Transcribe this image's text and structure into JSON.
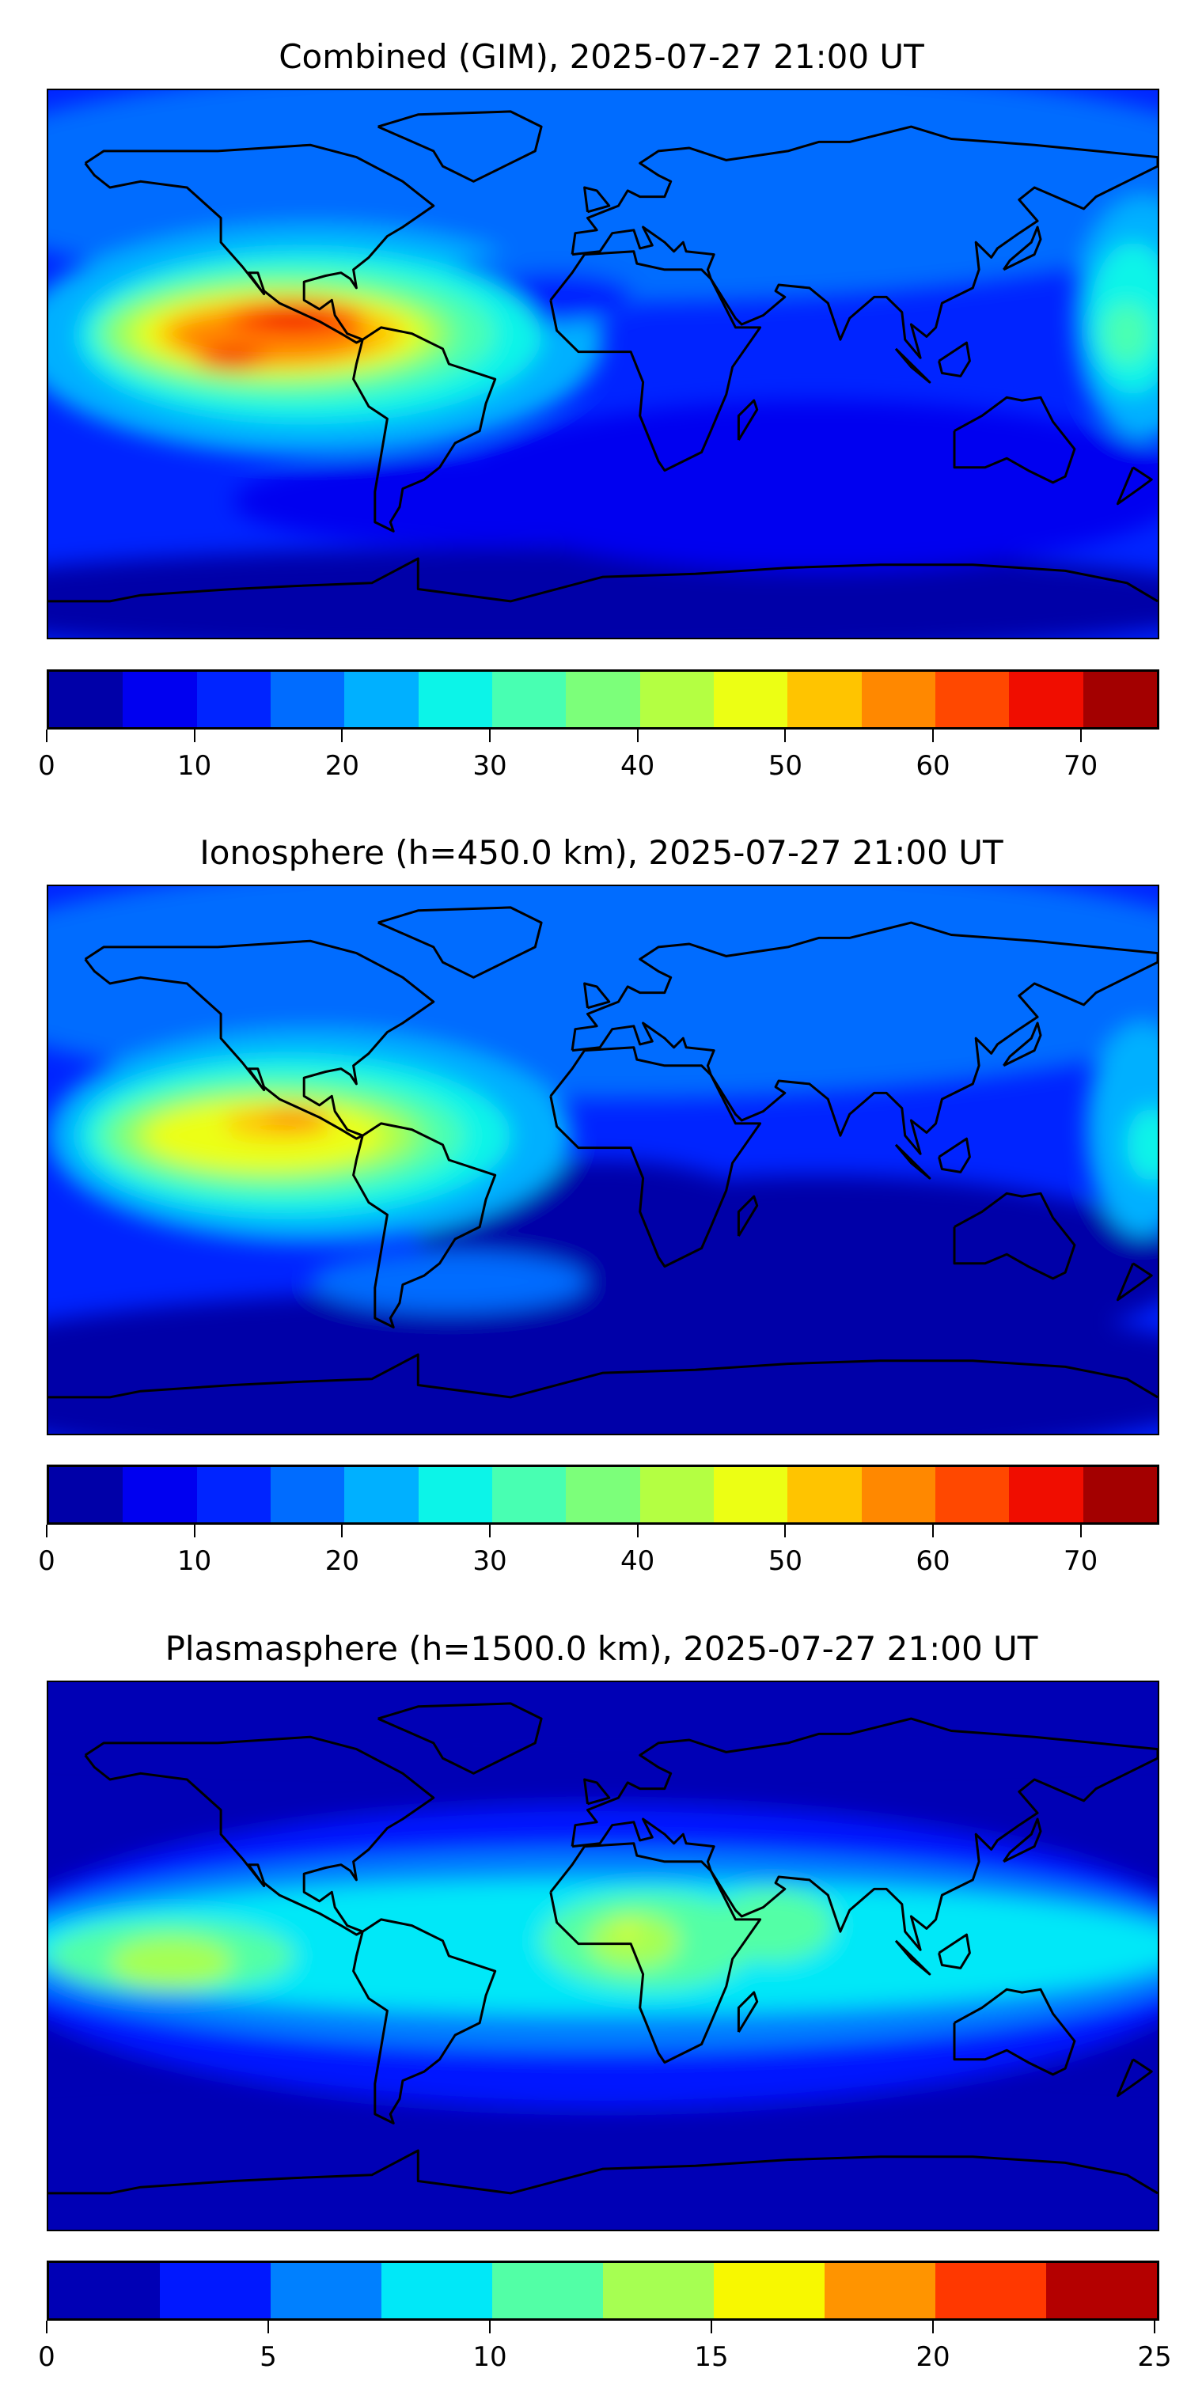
{
  "chart_data": [
    {
      "type": "heatmap",
      "title": "Combined (GIM), 2025-07-27 21:00 UT",
      "xlabel": "",
      "ylabel": "",
      "xlim": [
        -180,
        180
      ],
      "ylim": [
        -90,
        90
      ],
      "colorbar": {
        "levels": [
          0,
          5,
          10,
          15,
          20,
          25,
          30,
          35,
          40,
          45,
          50,
          55,
          60,
          65,
          70,
          75
        ],
        "colors": [
          "#0000a8",
          "#0000f0",
          "#0024ff",
          "#006cff",
          "#00b0ff",
          "#0cf4e8",
          "#48ffb2",
          "#7cff7a",
          "#b4ff42",
          "#ecff14",
          "#ffc400",
          "#ff8800",
          "#ff4800",
          "#f00d00",
          "#a30000"
        ],
        "ticks": [
          0,
          10,
          20,
          30,
          40,
          50,
          60,
          70
        ],
        "tick_labels": [
          "0",
          "10",
          "20",
          "30",
          "40",
          "50",
          "60",
          "70"
        ]
      },
      "features": "peak ~70 over eastern Pacific / Central America; lows <5 over southern Indian Ocean and Antarctica"
    },
    {
      "type": "heatmap",
      "title": "Ionosphere  (h=450.0 km), 2025-07-27 21:00 UT",
      "xlabel": "",
      "ylabel": "",
      "xlim": [
        -180,
        180
      ],
      "ylim": [
        -90,
        90
      ],
      "colorbar": {
        "levels": [
          0,
          5,
          10,
          15,
          20,
          25,
          30,
          35,
          40,
          45,
          50,
          55,
          60,
          65,
          70,
          75
        ],
        "colors": [
          "#0000a8",
          "#0000f0",
          "#0024ff",
          "#006cff",
          "#00b0ff",
          "#0cf4e8",
          "#48ffb2",
          "#7cff7a",
          "#b4ff42",
          "#ecff14",
          "#ffc400",
          "#ff8800",
          "#ff4800",
          "#f00d00",
          "#a30000"
        ],
        "ticks": [
          0,
          10,
          20,
          30,
          40,
          50,
          60,
          70
        ],
        "tick_labels": [
          "0",
          "10",
          "20",
          "30",
          "40",
          "50",
          "60",
          "70"
        ]
      },
      "features": "peak ~55-60 over eastern Pacific; lows <5 over southern oceans"
    },
    {
      "type": "heatmap",
      "title": "Plasmasphere (h=1500.0 km), 2025-07-27 21:00 UT",
      "xlabel": "",
      "ylabel": "",
      "xlim": [
        -180,
        180
      ],
      "ylim": [
        -90,
        90
      ],
      "colorbar": {
        "levels": [
          0,
          2.5,
          5,
          7.5,
          10,
          12.5,
          15,
          17.5,
          20,
          22.5,
          25
        ],
        "colors": [
          "#0000b5",
          "#0018ff",
          "#0080ff",
          "#00e8f8",
          "#52ffa6",
          "#a6ff52",
          "#f8f800",
          "#ff9400",
          "#ff3800",
          "#b40000"
        ],
        "ticks": [
          0,
          5,
          10,
          15,
          20,
          25
        ],
        "tick_labels": [
          "0",
          "5",
          "10",
          "15",
          "20",
          "25"
        ]
      },
      "features": "equatorial band 7.5-12.5, max ~15-17.5 over central Africa; poles <2.5"
    }
  ]
}
